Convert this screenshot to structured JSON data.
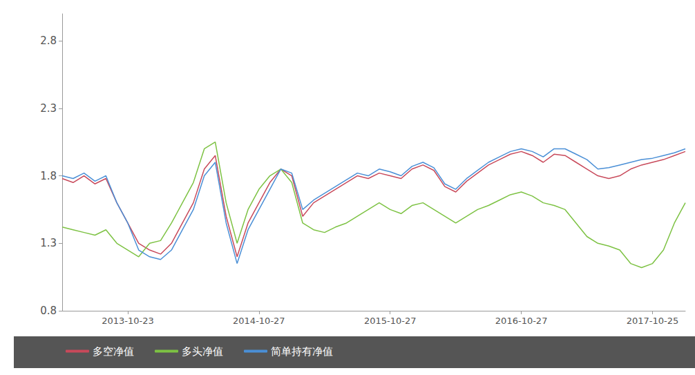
{
  "chart_data": {
    "type": "line",
    "categories": [
      null,
      null,
      null,
      null,
      null,
      null,
      "2013-10-23",
      null,
      null,
      null,
      null,
      null,
      null,
      null,
      null,
      null,
      null,
      null,
      "2014-10-27",
      null,
      null,
      null,
      null,
      null,
      null,
      null,
      null,
      null,
      null,
      null,
      "2015-10-27",
      null,
      null,
      null,
      null,
      null,
      null,
      null,
      null,
      null,
      null,
      null,
      "2016-10-27",
      null,
      null,
      null,
      null,
      null,
      null,
      null,
      null,
      null,
      null,
      null,
      "2017-10-25",
      null,
      null,
      null
    ],
    "series": [
      {
        "name": "多空净值",
        "color": "#c8495a",
        "values": [
          1.78,
          1.75,
          1.8,
          1.74,
          1.78,
          1.6,
          1.45,
          1.3,
          1.25,
          1.22,
          1.3,
          1.45,
          1.6,
          1.85,
          1.95,
          1.5,
          1.2,
          1.45,
          1.6,
          1.75,
          1.85,
          1.8,
          1.5,
          1.6,
          1.65,
          1.7,
          1.75,
          1.8,
          1.78,
          1.82,
          1.8,
          1.78,
          1.85,
          1.88,
          1.84,
          1.72,
          1.68,
          1.76,
          1.82,
          1.88,
          1.92,
          1.96,
          1.98,
          1.95,
          1.9,
          1.96,
          1.95,
          1.9,
          1.85,
          1.8,
          1.78,
          1.8,
          1.85,
          1.88,
          1.9,
          1.92,
          1.95,
          1.98
        ]
      },
      {
        "name": "多头净值",
        "color": "#7dc243",
        "values": [
          1.42,
          1.4,
          1.38,
          1.36,
          1.4,
          1.3,
          1.25,
          1.2,
          1.3,
          1.32,
          1.45,
          1.6,
          1.75,
          2.0,
          2.05,
          1.6,
          1.3,
          1.55,
          1.7,
          1.8,
          1.85,
          1.75,
          1.45,
          1.4,
          1.38,
          1.42,
          1.45,
          1.5,
          1.55,
          1.6,
          1.55,
          1.52,
          1.58,
          1.6,
          1.55,
          1.5,
          1.45,
          1.5,
          1.55,
          1.58,
          1.62,
          1.66,
          1.68,
          1.65,
          1.6,
          1.58,
          1.55,
          1.45,
          1.35,
          1.3,
          1.28,
          1.25,
          1.15,
          1.12,
          1.15,
          1.25,
          1.45,
          1.6
        ]
      },
      {
        "name": "简单持有净值",
        "color": "#4a8fd6",
        "values": [
          1.8,
          1.78,
          1.82,
          1.76,
          1.8,
          1.6,
          1.45,
          1.25,
          1.2,
          1.18,
          1.25,
          1.4,
          1.55,
          1.8,
          1.9,
          1.45,
          1.15,
          1.4,
          1.55,
          1.7,
          1.85,
          1.82,
          1.55,
          1.62,
          1.67,
          1.72,
          1.77,
          1.82,
          1.8,
          1.85,
          1.83,
          1.8,
          1.87,
          1.9,
          1.86,
          1.74,
          1.7,
          1.78,
          1.84,
          1.9,
          1.94,
          1.98,
          2.0,
          1.98,
          1.94,
          2.0,
          2.0,
          1.96,
          1.92,
          1.85,
          1.86,
          1.88,
          1.9,
          1.92,
          1.93,
          1.95,
          1.97,
          2.0
        ]
      }
    ],
    "ylim": [
      0.8,
      3.0
    ],
    "yticks": [
      0.8,
      1.3,
      1.8,
      2.3,
      2.8
    ],
    "grid": false,
    "legend": "bottom-left"
  }
}
